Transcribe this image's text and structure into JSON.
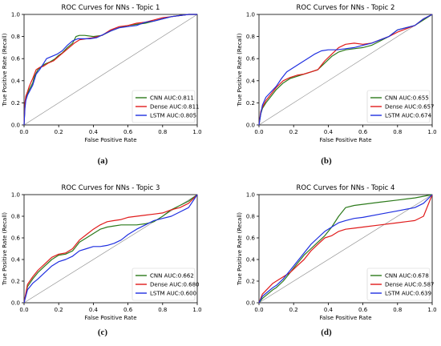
{
  "figure": {
    "captions": [
      "(a)",
      "(b)",
      "(c)",
      "(d)"
    ]
  },
  "colors": {
    "CNN": "#2c7a1b",
    "Dense": "#e01b1b",
    "LSTM": "#1f2fe0",
    "diagonal": "#8a8a8a",
    "axes": "#000000"
  },
  "chart_data": [
    {
      "type": "line",
      "title": "ROC Curves for NNs - Topic 1",
      "xlabel": "False Positive Rate",
      "ylabel": "True Positive Rate (Recall)",
      "xlim": [
        0.0,
        1.0
      ],
      "ylim": [
        0.0,
        1.0
      ],
      "xticks": [
        "0.0",
        "0.2",
        "0.4",
        "0.6",
        "0.8",
        "1.0"
      ],
      "yticks": [
        "0.0",
        "0.2",
        "0.4",
        "0.6",
        "0.8",
        "1.0"
      ],
      "grid": false,
      "legend_position": "lower-right",
      "diagonal_reference": true,
      "series": [
        {
          "name": "CNN AUC:0.811",
          "key": "CNN",
          "x": [
            0.0,
            0.005,
            0.01,
            0.02,
            0.03,
            0.05,
            0.06,
            0.08,
            0.1,
            0.12,
            0.15,
            0.18,
            0.2,
            0.22,
            0.25,
            0.28,
            0.3,
            0.32,
            0.35,
            0.4,
            0.45,
            0.5,
            0.55,
            0.6,
            0.65,
            0.7,
            0.75,
            0.8,
            0.85,
            0.9,
            0.95,
            1.0
          ],
          "y": [
            0.0,
            0.18,
            0.24,
            0.28,
            0.32,
            0.38,
            0.44,
            0.5,
            0.53,
            0.55,
            0.57,
            0.6,
            0.63,
            0.65,
            0.7,
            0.74,
            0.8,
            0.81,
            0.81,
            0.8,
            0.81,
            0.85,
            0.88,
            0.9,
            0.91,
            0.92,
            0.94,
            0.96,
            0.98,
            0.99,
            1.0,
            1.0
          ]
        },
        {
          "name": "Dense AUC:0.811",
          "key": "Dense",
          "x": [
            0.0,
            0.005,
            0.01,
            0.02,
            0.03,
            0.05,
            0.07,
            0.09,
            0.11,
            0.14,
            0.17,
            0.2,
            0.23,
            0.26,
            0.29,
            0.32,
            0.36,
            0.4,
            0.45,
            0.5,
            0.55,
            0.6,
            0.65,
            0.7,
            0.75,
            0.8,
            0.85,
            0.9,
            0.95,
            1.0
          ],
          "y": [
            0.0,
            0.2,
            0.26,
            0.3,
            0.35,
            0.42,
            0.5,
            0.52,
            0.53,
            0.56,
            0.58,
            0.62,
            0.66,
            0.7,
            0.74,
            0.77,
            0.78,
            0.79,
            0.81,
            0.86,
            0.89,
            0.9,
            0.92,
            0.93,
            0.95,
            0.97,
            0.98,
            0.99,
            1.0,
            1.0
          ]
        },
        {
          "name": "LSTM AUC:0.805",
          "key": "LSTM",
          "x": [
            0.0,
            0.005,
            0.01,
            0.02,
            0.03,
            0.05,
            0.07,
            0.09,
            0.11,
            0.13,
            0.16,
            0.19,
            0.22,
            0.25,
            0.28,
            0.31,
            0.34,
            0.38,
            0.42,
            0.46,
            0.5,
            0.55,
            0.6,
            0.65,
            0.7,
            0.75,
            0.8,
            0.85,
            0.9,
            0.95,
            1.0
          ],
          "y": [
            0.0,
            0.15,
            0.22,
            0.27,
            0.3,
            0.36,
            0.46,
            0.5,
            0.55,
            0.6,
            0.62,
            0.64,
            0.67,
            0.72,
            0.76,
            0.78,
            0.78,
            0.78,
            0.79,
            0.82,
            0.85,
            0.88,
            0.89,
            0.9,
            0.93,
            0.94,
            0.96,
            0.98,
            0.99,
            1.0,
            1.0
          ]
        }
      ]
    },
    {
      "type": "line",
      "title": "ROC Curves for NNs - Topic 2",
      "xlabel": "False Positive Rate",
      "ylabel": "True Positive Rate (Recall)",
      "xlim": [
        0.0,
        1.0
      ],
      "ylim": [
        0.0,
        1.0
      ],
      "xticks": [
        "0.0",
        "0.2",
        "0.4",
        "0.6",
        "0.8",
        "1.0"
      ],
      "yticks": [
        "0.0",
        "0.2",
        "0.4",
        "0.6",
        "0.8",
        "1.0"
      ],
      "grid": false,
      "legend_position": "lower-right",
      "diagonal_reference": true,
      "series": [
        {
          "name": "CNN AUC:0.655",
          "key": "CNN",
          "x": [
            0.0,
            0.01,
            0.02,
            0.04,
            0.07,
            0.1,
            0.14,
            0.18,
            0.22,
            0.26,
            0.3,
            0.34,
            0.38,
            0.42,
            0.46,
            0.5,
            0.55,
            0.6,
            0.65,
            0.7,
            0.75,
            0.8,
            0.85,
            0.9,
            0.95,
            1.0
          ],
          "y": [
            0.0,
            0.1,
            0.15,
            0.2,
            0.26,
            0.32,
            0.38,
            0.42,
            0.44,
            0.46,
            0.48,
            0.5,
            0.56,
            0.62,
            0.66,
            0.68,
            0.69,
            0.7,
            0.72,
            0.76,
            0.8,
            0.86,
            0.88,
            0.9,
            0.95,
            1.0
          ]
        },
        {
          "name": "Dense AUC:0.657",
          "key": "Dense",
          "x": [
            0.0,
            0.01,
            0.02,
            0.04,
            0.07,
            0.1,
            0.14,
            0.18,
            0.22,
            0.26,
            0.3,
            0.34,
            0.38,
            0.42,
            0.46,
            0.5,
            0.55,
            0.6,
            0.65,
            0.7,
            0.75,
            0.8,
            0.85,
            0.9,
            0.95,
            1.0
          ],
          "y": [
            0.0,
            0.12,
            0.16,
            0.22,
            0.28,
            0.34,
            0.4,
            0.43,
            0.45,
            0.46,
            0.48,
            0.5,
            0.58,
            0.64,
            0.7,
            0.73,
            0.74,
            0.73,
            0.74,
            0.77,
            0.8,
            0.84,
            0.87,
            0.9,
            0.96,
            1.0
          ]
        },
        {
          "name": "LSTM AUC:0.674",
          "key": "LSTM",
          "x": [
            0.0,
            0.01,
            0.02,
            0.04,
            0.07,
            0.1,
            0.13,
            0.16,
            0.2,
            0.24,
            0.28,
            0.32,
            0.36,
            0.4,
            0.45,
            0.5,
            0.55,
            0.6,
            0.65,
            0.7,
            0.75,
            0.8,
            0.85,
            0.9,
            0.95,
            1.0
          ],
          "y": [
            0.0,
            0.1,
            0.18,
            0.25,
            0.3,
            0.35,
            0.42,
            0.48,
            0.52,
            0.56,
            0.6,
            0.64,
            0.67,
            0.68,
            0.68,
            0.69,
            0.7,
            0.72,
            0.74,
            0.77,
            0.8,
            0.86,
            0.88,
            0.9,
            0.96,
            1.0
          ]
        }
      ]
    },
    {
      "type": "line",
      "title": "ROC Curves for NNs - Topic 3",
      "xlabel": "False Positive Rate",
      "ylabel": "True Positive Rate (Recall)",
      "xlim": [
        0.0,
        1.0
      ],
      "ylim": [
        0.0,
        1.0
      ],
      "xticks": [
        "0.0",
        "0.2",
        "0.4",
        "0.6",
        "0.8",
        "1.0"
      ],
      "yticks": [
        "0.0",
        "0.2",
        "0.4",
        "0.6",
        "0.8",
        "1.0"
      ],
      "grid": false,
      "legend_position": "lower-right",
      "diagonal_reference": true,
      "series": [
        {
          "name": "CNN AUC:0.662",
          "key": "CNN",
          "x": [
            0.0,
            0.02,
            0.05,
            0.08,
            0.12,
            0.16,
            0.2,
            0.24,
            0.28,
            0.32,
            0.36,
            0.4,
            0.44,
            0.48,
            0.52,
            0.56,
            0.6,
            0.65,
            0.7,
            0.75,
            0.8,
            0.85,
            0.9,
            0.95,
            1.0
          ],
          "y": [
            0.0,
            0.15,
            0.22,
            0.28,
            0.34,
            0.4,
            0.44,
            0.45,
            0.48,
            0.56,
            0.6,
            0.64,
            0.68,
            0.7,
            0.71,
            0.72,
            0.72,
            0.72,
            0.73,
            0.75,
            0.8,
            0.86,
            0.9,
            0.94,
            1.0
          ]
        },
        {
          "name": "Dense AUC:0.680",
          "key": "Dense",
          "x": [
            0.0,
            0.02,
            0.05,
            0.08,
            0.12,
            0.16,
            0.2,
            0.24,
            0.28,
            0.32,
            0.36,
            0.4,
            0.44,
            0.48,
            0.52,
            0.56,
            0.6,
            0.65,
            0.7,
            0.75,
            0.8,
            0.85,
            0.9,
            0.95,
            1.0
          ],
          "y": [
            0.0,
            0.17,
            0.24,
            0.3,
            0.36,
            0.42,
            0.45,
            0.46,
            0.5,
            0.58,
            0.63,
            0.68,
            0.72,
            0.75,
            0.76,
            0.77,
            0.79,
            0.8,
            0.81,
            0.82,
            0.83,
            0.86,
            0.88,
            0.92,
            1.0
          ]
        },
        {
          "name": "LSTM AUC:0.600",
          "key": "LSTM",
          "x": [
            0.0,
            0.02,
            0.05,
            0.08,
            0.12,
            0.16,
            0.2,
            0.24,
            0.28,
            0.32,
            0.36,
            0.4,
            0.44,
            0.48,
            0.52,
            0.56,
            0.6,
            0.65,
            0.7,
            0.75,
            0.8,
            0.85,
            0.9,
            0.95,
            1.0
          ],
          "y": [
            0.0,
            0.12,
            0.18,
            0.22,
            0.28,
            0.34,
            0.38,
            0.4,
            0.43,
            0.48,
            0.5,
            0.52,
            0.52,
            0.53,
            0.55,
            0.58,
            0.63,
            0.68,
            0.72,
            0.76,
            0.78,
            0.8,
            0.84,
            0.88,
            1.0
          ]
        }
      ]
    },
    {
      "type": "line",
      "title": "ROC Curves for NNs - Topic 4",
      "xlabel": "False Positive Rate",
      "ylabel": "True Positive Rate (Recall)",
      "xlim": [
        0.0,
        1.0
      ],
      "ylim": [
        0.0,
        1.0
      ],
      "xticks": [
        "0.0",
        "0.2",
        "0.4",
        "0.6",
        "0.8",
        "1.0"
      ],
      "yticks": [
        "0.0",
        "0.2",
        "0.4",
        "0.6",
        "0.8",
        "1.0"
      ],
      "grid": false,
      "legend_position": "lower-right",
      "diagonal_reference": true,
      "series": [
        {
          "name": "CNN AUC:0.678",
          "key": "CNN",
          "x": [
            0.0,
            0.02,
            0.05,
            0.08,
            0.1,
            0.14,
            0.18,
            0.22,
            0.26,
            0.3,
            0.34,
            0.38,
            0.42,
            0.46,
            0.5,
            0.55,
            0.6,
            0.7,
            0.8,
            0.9,
            1.0
          ],
          "y": [
            0.0,
            0.04,
            0.08,
            0.12,
            0.14,
            0.2,
            0.28,
            0.36,
            0.44,
            0.5,
            0.56,
            0.62,
            0.7,
            0.8,
            0.88,
            0.9,
            0.91,
            0.93,
            0.95,
            0.97,
            1.0
          ]
        },
        {
          "name": "Dense AUC:0.587",
          "key": "Dense",
          "x": [
            0.0,
            0.02,
            0.05,
            0.08,
            0.1,
            0.14,
            0.18,
            0.22,
            0.26,
            0.3,
            0.34,
            0.38,
            0.42,
            0.46,
            0.5,
            0.55,
            0.6,
            0.7,
            0.8,
            0.9,
            0.95,
            1.0
          ],
          "y": [
            0.0,
            0.08,
            0.13,
            0.18,
            0.2,
            0.24,
            0.28,
            0.34,
            0.4,
            0.48,
            0.54,
            0.6,
            0.62,
            0.66,
            0.68,
            0.69,
            0.7,
            0.72,
            0.74,
            0.76,
            0.8,
            1.0
          ]
        },
        {
          "name": "LSTM AUC:0.639",
          "key": "LSTM",
          "x": [
            0.0,
            0.02,
            0.05,
            0.08,
            0.1,
            0.14,
            0.18,
            0.22,
            0.26,
            0.3,
            0.34,
            0.38,
            0.42,
            0.46,
            0.5,
            0.55,
            0.6,
            0.7,
            0.8,
            0.9,
            0.95,
            1.0
          ],
          "y": [
            0.0,
            0.06,
            0.1,
            0.14,
            0.16,
            0.22,
            0.3,
            0.38,
            0.46,
            0.54,
            0.6,
            0.66,
            0.7,
            0.74,
            0.76,
            0.78,
            0.79,
            0.82,
            0.85,
            0.88,
            0.92,
            1.0
          ]
        }
      ]
    }
  ]
}
